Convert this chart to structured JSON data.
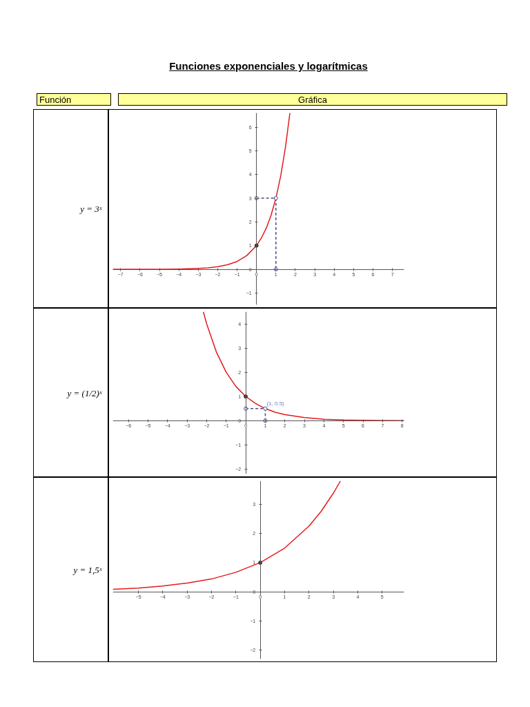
{
  "chart_data": [
    {
      "type": "line",
      "title": "y = 3ˣ",
      "annotations": [
        "Funciones exponenciales y logarítmicas",
        "Función",
        "Gráfica"
      ],
      "xlim": [
        -7.4,
        7.6
      ],
      "ylim": [
        -1.5,
        6.6
      ],
      "xticks": [
        -7,
        -6,
        -5,
        -4,
        -3,
        -2,
        -1,
        0,
        1,
        2,
        3,
        4,
        5,
        6,
        7
      ],
      "yticks": [
        -1,
        0,
        1,
        2,
        3,
        4,
        5,
        6
      ],
      "grid": false,
      "series": [
        {
          "color": "#e41a1c",
          "marker": "none",
          "line_style": "solid",
          "x": [
            -7.4,
            -6,
            -5,
            -4,
            -3,
            -2.5,
            -2,
            -1.5,
            -1,
            -0.5,
            0,
            0.25,
            0.5,
            0.75,
            1,
            1.25,
            1.5,
            1.72
          ],
          "values": [
            0,
            0,
            0,
            0.01,
            0.04,
            0.06,
            0.11,
            0.19,
            0.33,
            0.58,
            1,
            1.32,
            1.73,
            2.28,
            3,
            3.95,
            5.2,
            6.6
          ]
        },
        {
          "type": "line",
          "color": "#4a4a8c",
          "marker": "circle",
          "line_style": "dashed",
          "x": [
            0,
            1,
            1
          ],
          "values": [
            3,
            3,
            0
          ]
        },
        {
          "type": "scatter",
          "color": "#333333",
          "marker": "circle",
          "x": [
            0
          ],
          "values": [
            1
          ]
        }
      ]
    },
    {
      "type": "line",
      "title": "y = (1/2)ˣ",
      "xlim": [
        -6.8,
        8.1
      ],
      "ylim": [
        -2.2,
        4.5
      ],
      "xticks": [
        -6,
        -5,
        -4,
        -3,
        -2,
        -1,
        0,
        1,
        2,
        3,
        4,
        5,
        6,
        7,
        8
      ],
      "yticks": [
        -2,
        -1,
        0,
        1,
        2,
        3,
        4
      ],
      "grid": false,
      "annotations": [
        {
          "text": "(1, 0.5)",
          "x": 1,
          "y": 0.5
        }
      ],
      "series": [
        {
          "color": "#e41a1c",
          "marker": "none",
          "line_style": "solid",
          "x": [
            -2.17,
            -2,
            -1.5,
            -1,
            -0.5,
            0,
            0.5,
            1,
            1.5,
            2,
            3,
            4,
            5,
            6,
            7,
            8.1
          ],
          "values": [
            4.5,
            4,
            2.83,
            2,
            1.41,
            1,
            0.71,
            0.5,
            0.35,
            0.25,
            0.13,
            0.06,
            0.03,
            0.02,
            0.01,
            0
          ]
        },
        {
          "type": "line",
          "color": "#4a4a8c",
          "marker": "circle",
          "line_style": "dashed",
          "x": [
            0,
            1,
            1
          ],
          "values": [
            0.5,
            0.5,
            0
          ]
        },
        {
          "type": "scatter",
          "color": "#333333",
          "marker": "circle",
          "x": [
            0
          ],
          "values": [
            1
          ]
        }
      ]
    },
    {
      "type": "line",
      "title": "y = 1,5ˣ",
      "xlim": [
        -6.05,
        5.9
      ],
      "ylim": [
        -2.3,
        3.8
      ],
      "xticks": [
        -5,
        -4,
        -3,
        -2,
        -1,
        0,
        1,
        2,
        3,
        4,
        5
      ],
      "yticks": [
        -2,
        -1,
        0,
        1,
        2,
        3
      ],
      "grid": false,
      "series": [
        {
          "color": "#e41a1c",
          "marker": "none",
          "line_style": "solid",
          "x": [
            -6.05,
            -5,
            -4,
            -3,
            -2,
            -1,
            0,
            1,
            2,
            2.5,
            3,
            3.29
          ],
          "values": [
            0.09,
            0.13,
            0.2,
            0.3,
            0.44,
            0.67,
            1,
            1.5,
            2.25,
            2.76,
            3.38,
            3.8
          ]
        },
        {
          "type": "scatter",
          "color": "#333333",
          "marker": "circle",
          "x": [
            0
          ],
          "values": [
            1
          ]
        }
      ]
    }
  ]
}
